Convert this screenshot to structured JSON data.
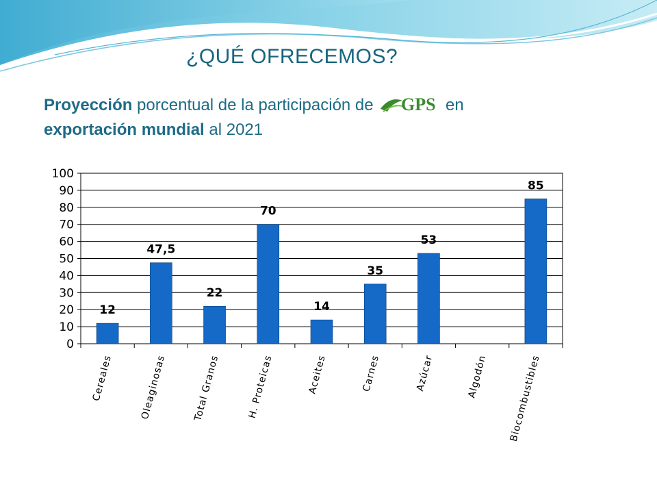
{
  "slide": {
    "title": "¿QUÉ OFRECEMOS?",
    "subtitle": {
      "part1_bold": "Proyección",
      "part2": " porcentual de la participación de",
      "logo_text": "GPS",
      "part3": " en",
      "part4_bold": "exportación mundial",
      "part5": " al 2021"
    }
  },
  "colors": {
    "bar": "#1569c7",
    "title": "#17657e",
    "logo_green": "#3a8a2e"
  },
  "chart_data": {
    "type": "bar",
    "categories": [
      "Cereales",
      "Oleaginosas",
      "Total Granos",
      "H. Proteicas",
      "Aceites",
      "Carnes",
      "Azúcar",
      "Algodón",
      "Biocombustibles"
    ],
    "values": [
      12,
      47.5,
      22,
      70,
      14,
      35,
      53,
      null,
      85
    ],
    "value_labels": [
      "12",
      "47,5",
      "22",
      "70",
      "14",
      "35",
      "53",
      "",
      "85"
    ],
    "ylim": [
      0,
      100
    ],
    "yticks": [
      "0",
      "10",
      "20",
      "30",
      "40",
      "50",
      "60",
      "70",
      "80",
      "90",
      "100"
    ],
    "grid": true,
    "legend": "none",
    "title": "",
    "xlabel": "",
    "ylabel": ""
  }
}
